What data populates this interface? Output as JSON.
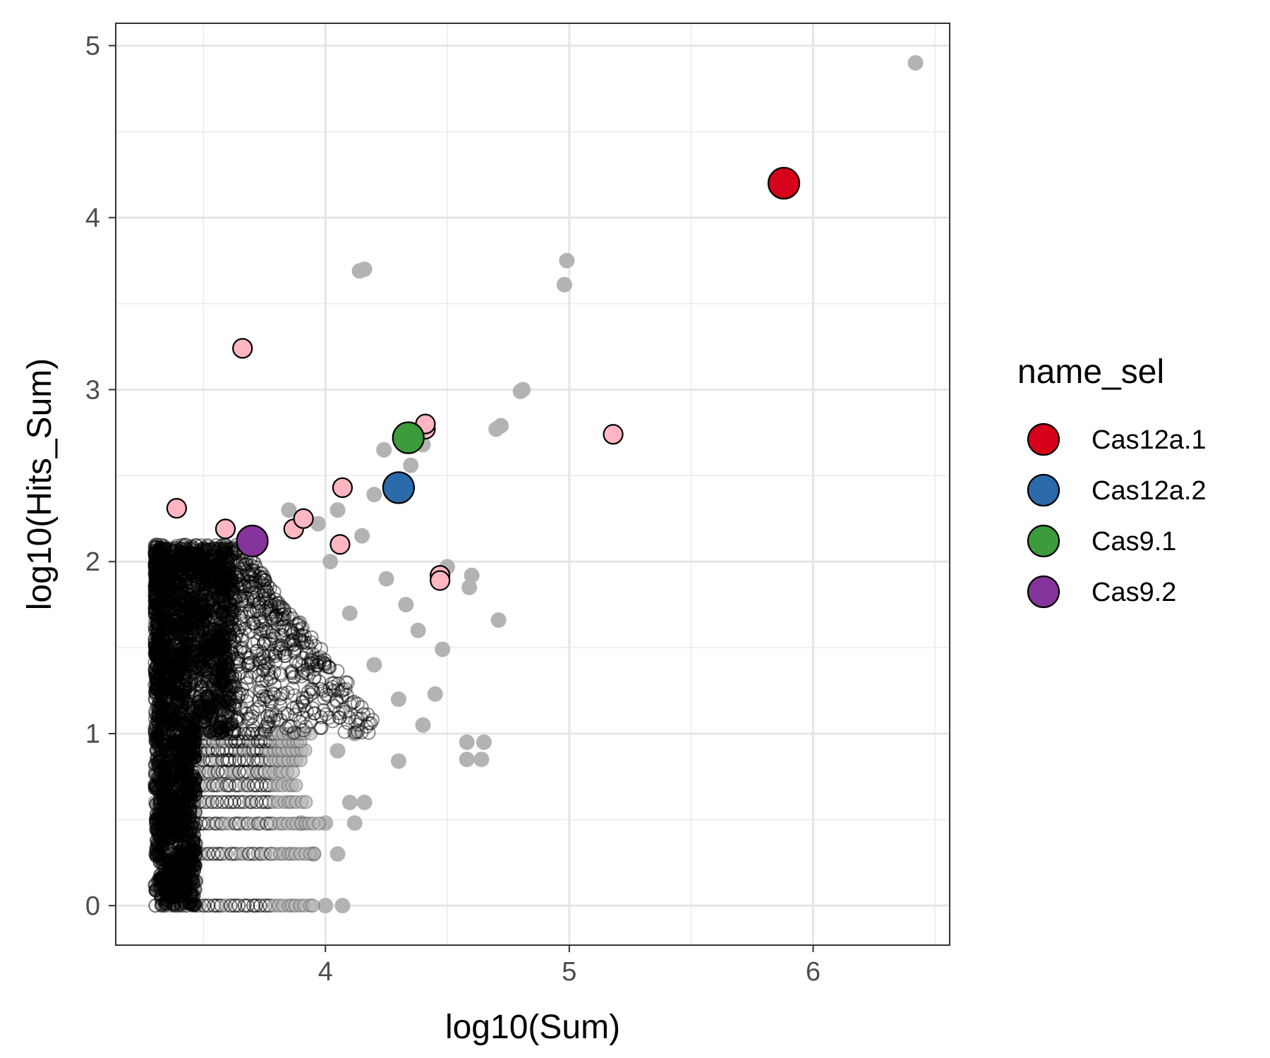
{
  "chart_data": {
    "type": "scatter",
    "xlabel": "log10(Sum)",
    "ylabel": "log10(Hits_Sum)",
    "xlim": [
      3.14,
      6.56
    ],
    "ylim": [
      -0.23,
      5.13
    ],
    "x_ticks": [
      4,
      5,
      6
    ],
    "y_ticks": [
      0,
      1,
      2,
      3,
      4,
      5
    ],
    "grid": true,
    "legend_title": "name_sel",
    "legend_position": "right",
    "series": [
      {
        "name": "Cas12a.1",
        "color": "#d7001a",
        "points": [
          [
            5.88,
            4.2
          ]
        ]
      },
      {
        "name": "Cas12a.2",
        "color": "#2b6aab",
        "points": [
          [
            4.3,
            2.43
          ]
        ]
      },
      {
        "name": "Cas9.1",
        "color": "#3c9b3a",
        "points": [
          [
            4.34,
            2.72
          ]
        ]
      },
      {
        "name": "Cas9.2",
        "color": "#84349a",
        "points": [
          [
            3.7,
            2.12
          ]
        ]
      }
    ],
    "highlighted_points": {
      "color": "#ffb6c1",
      "points": [
        [
          3.66,
          3.24
        ],
        [
          3.39,
          2.31
        ],
        [
          3.59,
          2.19
        ],
        [
          3.87,
          2.19
        ],
        [
          3.91,
          2.25
        ],
        [
          4.07,
          2.43
        ],
        [
          4.06,
          2.1
        ],
        [
          4.41,
          2.77
        ],
        [
          4.41,
          2.8
        ],
        [
          5.18,
          2.74
        ],
        [
          4.47,
          1.92
        ],
        [
          4.47,
          1.89
        ]
      ]
    },
    "background_points": {
      "color": "#b3b3b3",
      "points": [
        [
          6.42,
          4.9
        ],
        [
          4.99,
          3.75
        ],
        [
          4.98,
          3.61
        ],
        [
          4.14,
          3.69
        ],
        [
          4.16,
          3.7
        ],
        [
          4.81,
          3.0
        ],
        [
          4.8,
          2.99
        ],
        [
          4.72,
          2.79
        ],
        [
          4.7,
          2.77
        ],
        [
          4.24,
          2.65
        ],
        [
          4.35,
          2.56
        ],
        [
          4.4,
          2.68
        ],
        [
          4.27,
          2.4
        ],
        [
          4.2,
          2.39
        ],
        [
          4.05,
          2.3
        ],
        [
          4.5,
          1.97
        ],
        [
          4.6,
          1.92
        ],
        [
          4.59,
          1.85
        ],
        [
          4.71,
          1.66
        ],
        [
          4.58,
          0.95
        ],
        [
          4.65,
          0.95
        ],
        [
          4.58,
          0.85
        ],
        [
          4.64,
          0.85
        ],
        [
          4.3,
          0.84
        ],
        [
          4.45,
          1.23
        ],
        [
          4.4,
          1.05
        ],
        [
          4.48,
          1.49
        ],
        [
          4.38,
          1.6
        ],
        [
          4.33,
          1.75
        ],
        [
          4.25,
          1.9
        ],
        [
          4.15,
          2.15
        ],
        [
          3.85,
          2.3
        ],
        [
          3.97,
          2.22
        ],
        [
          4.02,
          2.0
        ],
        [
          4.1,
          1.7
        ],
        [
          4.2,
          1.4
        ],
        [
          4.3,
          1.2
        ],
        [
          4.12,
          1.0
        ],
        [
          4.05,
          0.9
        ],
        [
          4.1,
          0.6
        ],
        [
          4.0,
          0.48
        ],
        [
          4.05,
          0.3
        ],
        [
          4.07,
          0.0
        ],
        [
          4.16,
          0.6
        ],
        [
          4.12,
          0.48
        ],
        [
          4.0,
          0.0
        ],
        [
          3.95,
          0.3
        ],
        [
          3.9,
          0.48
        ]
      ]
    },
    "dense_cloud": {
      "x_range": [
        3.3,
        4.2
      ],
      "y_range": [
        0,
        2.1
      ],
      "outline_color": "#000000"
    }
  }
}
